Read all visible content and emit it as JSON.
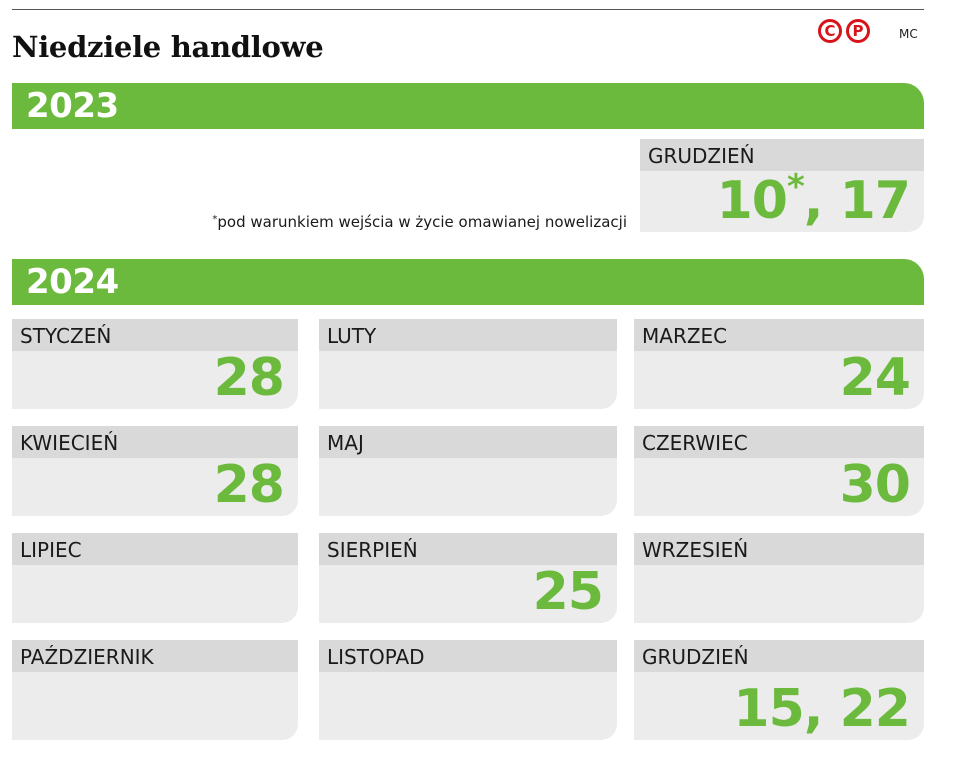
{
  "title": "Niedziele handlowe",
  "logo": {
    "letters": [
      "C",
      "P"
    ]
  },
  "author": "MC",
  "colors": {
    "accent": "#6cba3d",
    "logo_red": "#d7141b",
    "card_bg": "#ececec",
    "card_head_bg": "#d9d9d9"
  },
  "years": [
    {
      "year": "2023",
      "footnote": {
        "marker": "*",
        "text": "pod warunkiem wejścia w życie omawianej nowelizacji"
      },
      "months": [
        {
          "name": "GRUDZIEŃ",
          "value_main": "10",
          "value_star": "*",
          "value_rest": ", 17"
        }
      ]
    },
    {
      "year": "2024",
      "months": [
        {
          "name": "STYCZEŃ",
          "value": "28"
        },
        {
          "name": "LUTY",
          "value": ""
        },
        {
          "name": "MARZEC",
          "value": "24"
        },
        {
          "name": "KWIECIEŃ",
          "value": "28"
        },
        {
          "name": "MAJ",
          "value": ""
        },
        {
          "name": "CZERWIEC",
          "value": "30"
        },
        {
          "name": "LIPIEC",
          "value": ""
        },
        {
          "name": "SIERPIEŃ",
          "value": "25"
        },
        {
          "name": "WRZESIEŃ",
          "value": ""
        },
        {
          "name": "PAŹDZIERNIK",
          "value": ""
        },
        {
          "name": "LISTOPAD",
          "value": ""
        },
        {
          "name": "GRUDZIEŃ",
          "value": "15, 22"
        }
      ]
    }
  ]
}
